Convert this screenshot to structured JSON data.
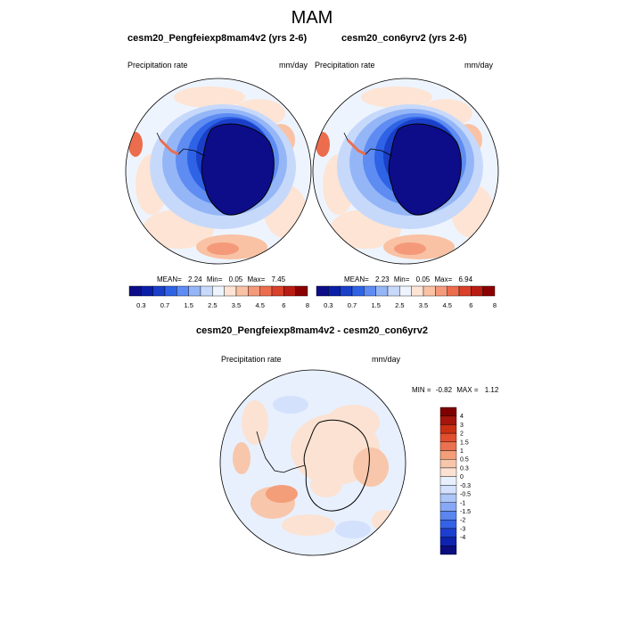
{
  "title": "MAM",
  "colors": {
    "precip_scale": [
      "#0d0d8a",
      "#0a1fa8",
      "#1a3fc8",
      "#2f63e6",
      "#5e8cf2",
      "#94b6f7",
      "#c7d9fb",
      "#eef4fe",
      "#fde4d4",
      "#f9c2a4",
      "#f49a7a",
      "#ec6d4d",
      "#d9412a",
      "#b81c13",
      "#8b0000"
    ],
    "diff_scale": [
      "#0b0d80",
      "#0e23b0",
      "#1c3fd0",
      "#3462e6",
      "#5b86f0",
      "#86a8f5",
      "#adc6f9",
      "#d3e1fc",
      "#e8f0fe",
      "#fbe2d2",
      "#f8c6aa",
      "#f39d79",
      "#ec7150",
      "#e14f2e",
      "#cc3012",
      "#a5160c",
      "#7e0000"
    ],
    "land": "#ffffff"
  },
  "panels": [
    {
      "title": "cesm20_Pengfeiexp8mam4v2 (yrs 2-6)",
      "left_label": "Precipitation rate",
      "right_label": "mm/day",
      "stats": {
        "mean_label": "MEAN=",
        "mean": "2.24",
        "min_label": "Min=",
        "min": "0.05",
        "max_label": "Max=",
        "max": "7.45"
      },
      "colorbar_ticks": [
        "0.3",
        "0.7",
        "1.5",
        "2.5",
        "3.5",
        "4.5",
        "6",
        "8"
      ]
    },
    {
      "title": "cesm20_con6yrv2 (yrs 2-6)",
      "left_label": "Precipitation rate",
      "right_label": "mm/day",
      "stats": {
        "mean_label": "MEAN=",
        "mean": "2.23",
        "min_label": "Min=",
        "min": "0.05",
        "max_label": "Max=",
        "max": "6.94"
      },
      "colorbar_ticks": [
        "0.3",
        "0.7",
        "1.5",
        "2.5",
        "3.5",
        "4.5",
        "6",
        "8"
      ]
    }
  ],
  "diff_panel": {
    "title": "cesm20_Pengfeiexp8mam4v2 - cesm20_con6yrv2",
    "left_label": "Precipitation rate",
    "right_label": "mm/day",
    "minmax": {
      "min_label": "MIN =",
      "min": "-0.82",
      "max_label": "MAX =",
      "max": "1.12"
    },
    "colorbar_ticks": [
      "4",
      "3",
      "2",
      "1.5",
      "1",
      "0.5",
      "0.3",
      "0",
      "-0.3",
      "-0.5",
      "-1",
      "-1.5",
      "-2",
      "-3",
      "-4"
    ]
  }
}
